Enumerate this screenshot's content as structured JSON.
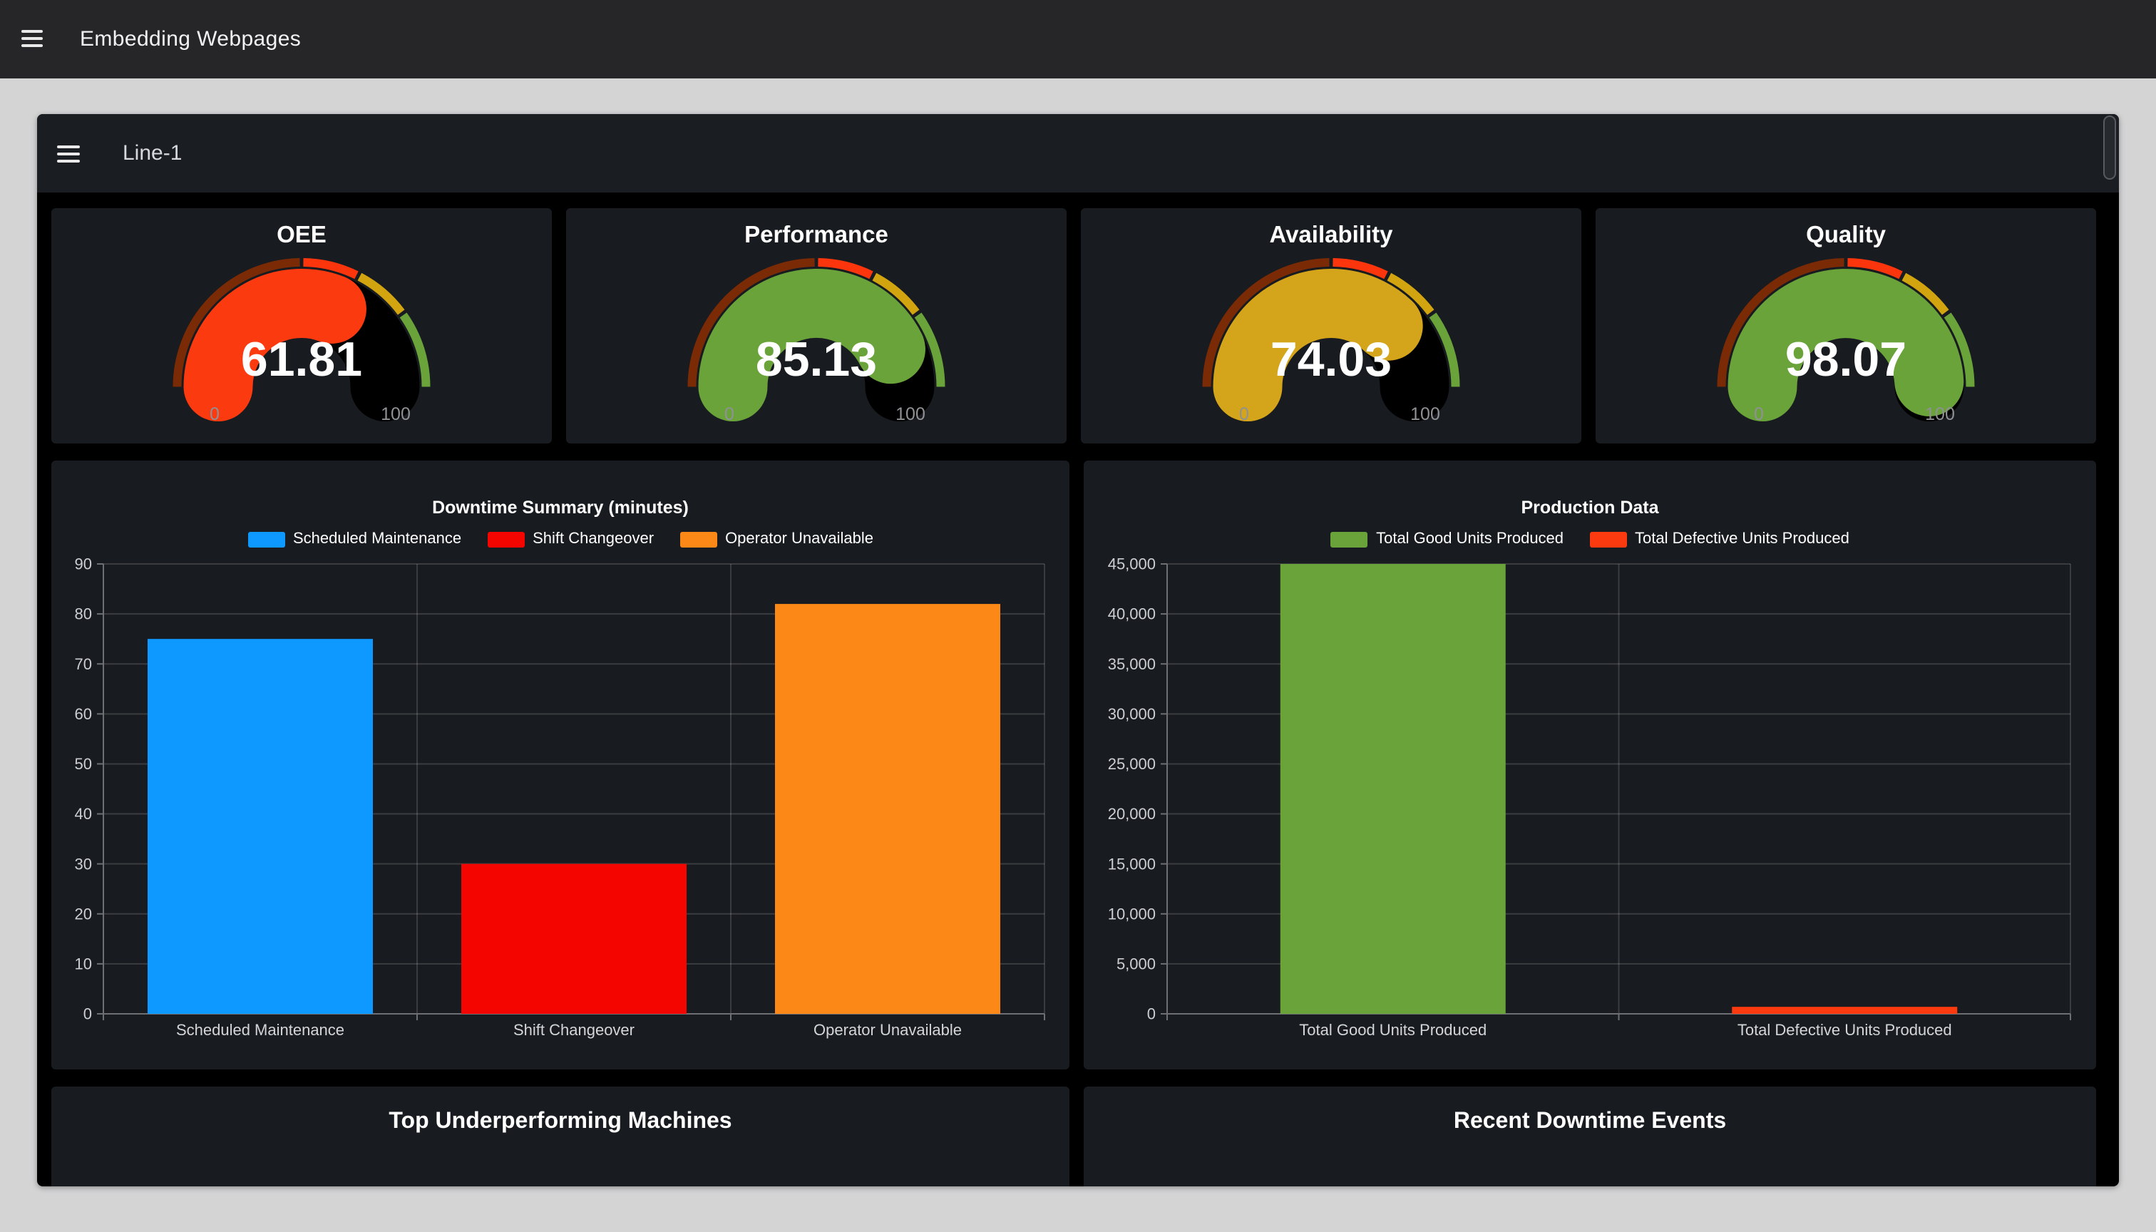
{
  "app_bar": {
    "title": "Embedding Webpages",
    "menu_icon": "hamburger-icon"
  },
  "dashboard": {
    "title": "Line-1",
    "menu_icon": "hamburger-icon",
    "bottom_panels": [
      {
        "title": "Top Underperforming Machines"
      },
      {
        "title": "Recent Downtime Events"
      }
    ]
  },
  "colors": {
    "appbar_bg": "#262628",
    "page_bg": "#d4d4d5",
    "frame_bg": "#000000",
    "header_bg": "#1a1d21",
    "panel_bg": "#181b1f",
    "grid": "rgba(255,255,255,0.15)",
    "axis": "#6d6f73",
    "tick_label": "#cdced1",
    "category_label": "#d4d5d7",
    "gauge_minmax_label": "#8f9194",
    "gauge_unfilled": "#000000"
  },
  "gauge_thresholds": [
    {
      "upto": 50,
      "color": "#7a2b06"
    },
    {
      "upto": 65,
      "color": "#fc350c"
    },
    {
      "upto": 80,
      "color": "#d2a40f"
    },
    {
      "upto": 100,
      "color": "#69a33a"
    }
  ],
  "chart_data": [
    {
      "type": "gauge",
      "title": "OEE",
      "value": 61.81,
      "min": 0,
      "max": 100,
      "value_color": "#fc3a10"
    },
    {
      "type": "gauge",
      "title": "Performance",
      "value": 85.13,
      "min": 0,
      "max": 100,
      "value_color": "#69a33a"
    },
    {
      "type": "gauge",
      "title": "Availability",
      "value": 74.03,
      "min": 0,
      "max": 100,
      "value_color": "#d4a41a"
    },
    {
      "type": "gauge",
      "title": "Quality",
      "value": 98.07,
      "min": 0,
      "max": 100,
      "value_color": "#69a33a"
    },
    {
      "type": "bar",
      "id": "downtime",
      "title": "Downtime Summary (minutes)",
      "categories": [
        "Scheduled Maintenance",
        "Shift Changeover",
        "Operator Unavailable"
      ],
      "values": [
        75,
        30,
        82
      ],
      "bar_colors": [
        "#0d99ff",
        "#f50500",
        "#fb8817"
      ],
      "legend": [
        {
          "label": "Scheduled Maintenance",
          "color": "#0d99ff"
        },
        {
          "label": "Shift Changeover",
          "color": "#f50500"
        },
        {
          "label": "Operator Unavailable",
          "color": "#fb8817"
        }
      ],
      "ylim": [
        0,
        90
      ],
      "ytick": 10,
      "grid": true,
      "legend_position": "top",
      "xlabel": "",
      "ylabel": ""
    },
    {
      "type": "bar",
      "id": "production",
      "title": "Production Data",
      "categories": [
        "Total Good Units Produced",
        "Total Defective Units Produced"
      ],
      "values": [
        45000,
        700
      ],
      "bar_colors": [
        "#69a33a",
        "#fc3a10"
      ],
      "legend": [
        {
          "label": "Total Good Units Produced",
          "color": "#69a33a"
        },
        {
          "label": "Total Defective Units Produced",
          "color": "#fc3a10"
        }
      ],
      "ylim": [
        0,
        45000
      ],
      "ytick": 5000,
      "grid": true,
      "legend_position": "top",
      "xlabel": "",
      "ylabel": ""
    }
  ],
  "layout_values": {
    "gauge_panel_lefts": [
      10,
      371,
      732,
      1093
    ],
    "chart_panel_lefts": [
      10,
      734
    ],
    "chart_panel_widths": [
      714,
      710
    ],
    "bar_plot": [
      {
        "axis_x": 36.5,
        "right_x": 696.5
      },
      {
        "axis_x": 58.5,
        "right_x": 692
      }
    ]
  }
}
